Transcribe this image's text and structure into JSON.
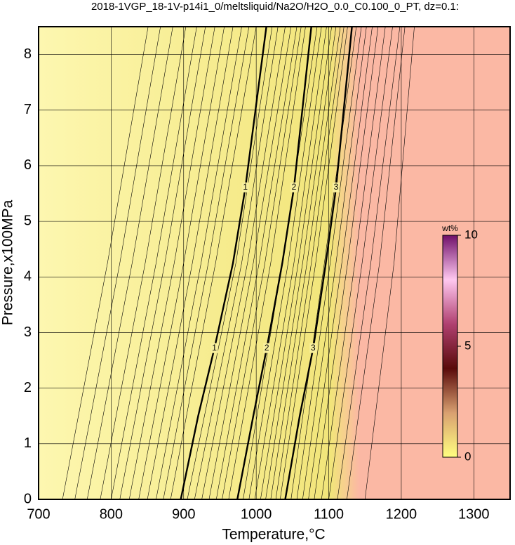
{
  "chart_data": {
    "type": "contour",
    "title": "2018-1VGP_18-1V-p14i1_0/meltsliquid/Na2O/H2O_0.0_C0.100_0_PT, dz=0.1:",
    "x_label": "Temperature,°C",
    "y_label": "Pressure,x100MPa",
    "xlim": [
      700,
      1350
    ],
    "ylim": [
      0,
      8.5
    ],
    "xticks": [
      700,
      800,
      900,
      1000,
      1100,
      1200,
      1300
    ],
    "yticks": [
      0,
      1,
      2,
      3,
      4,
      5,
      6,
      7,
      8
    ],
    "grid": true,
    "background_colors": [
      "#fdf7b0",
      "#f2e57a",
      "#fbb8a4"
    ],
    "contours": [
      {
        "x": [
          733,
          795,
          851
        ],
        "y": [
          0,
          4.25,
          8.5
        ]
      },
      {
        "x": [
          750,
          812,
          868
        ],
        "y": [
          0,
          4.25,
          8.5
        ]
      },
      {
        "x": [
          767,
          829,
          885
        ],
        "y": [
          0,
          4.25,
          8.5
        ]
      },
      {
        "x": [
          785,
          847,
          903
        ],
        "y": [
          0,
          4.25,
          8.5
        ]
      },
      {
        "x": [
          800,
          862,
          918
        ],
        "y": [
          0,
          4.25,
          8.5
        ]
      },
      {
        "x": [
          812,
          874,
          930
        ],
        "y": [
          0,
          4.25,
          8.5
        ]
      },
      {
        "x": [
          825,
          887,
          943
        ],
        "y": [
          0,
          4.25,
          8.5
        ]
      },
      {
        "x": [
          838,
          900,
          956
        ],
        "y": [
          0,
          4.25,
          8.5
        ]
      },
      {
        "x": [
          850,
          912,
          968
        ],
        "y": [
          0,
          4.25,
          8.5
        ]
      },
      {
        "x": [
          862,
          924,
          980
        ],
        "y": [
          0,
          4.25,
          8.5
        ]
      },
      {
        "x": [
          872,
          934,
          990
        ],
        "y": [
          0,
          4.25,
          8.5
        ]
      },
      {
        "x": [
          882,
          944,
          1000
        ],
        "y": [
          0,
          4.25,
          8.5
        ]
      },
      {
        "x": [
          905,
          972,
          1022
        ],
        "y": [
          0,
          4.25,
          8.5
        ]
      },
      {
        "x": [
          915,
          980,
          1030
        ],
        "y": [
          0,
          4.25,
          8.5
        ]
      },
      {
        "x": [
          925,
          988,
          1040
        ],
        "y": [
          0,
          4.25,
          8.5
        ]
      },
      {
        "x": [
          935,
          996,
          1048
        ],
        "y": [
          0,
          4.25,
          8.5
        ]
      },
      {
        "x": [
          945,
          1004,
          1056
        ],
        "y": [
          0,
          4.25,
          8.5
        ]
      },
      {
        "x": [
          953,
          1012,
          1062
        ],
        "y": [
          0,
          4.25,
          8.5
        ]
      },
      {
        "x": [
          962,
          1020,
          1068
        ],
        "y": [
          0,
          4.25,
          8.5
        ]
      },
      {
        "x": [
          982,
          1036,
          1084
        ],
        "y": [
          0,
          4.25,
          8.5
        ]
      },
      {
        "x": [
          990,
          1044,
          1090
        ],
        "y": [
          0,
          4.25,
          8.5
        ]
      },
      {
        "x": [
          998,
          1052,
          1097
        ],
        "y": [
          0,
          4.25,
          8.5
        ]
      },
      {
        "x": [
          1006,
          1058,
          1104
        ],
        "y": [
          0,
          4.25,
          8.5
        ]
      },
      {
        "x": [
          1013,
          1064,
          1110
        ],
        "y": [
          0,
          4.25,
          8.5
        ]
      },
      {
        "x": [
          1020,
          1070,
          1116
        ],
        "y": [
          0,
          4.25,
          8.5
        ]
      },
      {
        "x": [
          1027,
          1076,
          1121
        ],
        "y": [
          0,
          4.25,
          8.5
        ]
      },
      {
        "x": [
          1033,
          1082,
          1126
        ],
        "y": [
          0,
          4.25,
          8.5
        ]
      },
      {
        "x": [
          1048,
          1094,
          1138
        ],
        "y": [
          0,
          4.25,
          8.5
        ]
      },
      {
        "x": [
          1056,
          1102,
          1145
        ],
        "y": [
          0,
          4.25,
          8.5
        ]
      },
      {
        "x": [
          1064,
          1110,
          1152
        ],
        "y": [
          0,
          4.25,
          8.5
        ]
      },
      {
        "x": [
          1072,
          1118,
          1160
        ],
        "y": [
          0,
          4.25,
          8.5
        ]
      },
      {
        "x": [
          1080,
          1126,
          1168
        ],
        "y": [
          0,
          4.25,
          8.5
        ]
      },
      {
        "x": [
          1090,
          1136,
          1178
        ],
        "y": [
          0,
          4.25,
          8.5
        ]
      },
      {
        "x": [
          1100,
          1146,
          1188
        ],
        "y": [
          0,
          4.25,
          8.5
        ]
      },
      {
        "x": [
          1112,
          1158,
          1198
        ],
        "y": [
          0,
          4.25,
          8.5
        ]
      },
      {
        "x": [
          1125,
          1170,
          1205
        ],
        "y": [
          0,
          4.25,
          8.5
        ]
      },
      {
        "x": [
          1150,
          1190,
          1218
        ],
        "y": [
          0,
          4.25,
          8.5
        ]
      }
    ],
    "major_contours": [
      {
        "label": "1",
        "x": [
          896,
          920,
          943,
          968,
          985,
          1014
        ],
        "y": [
          0,
          1.5,
          2.75,
          4.25,
          5.6,
          8.5
        ]
      },
      {
        "label": "2",
        "x": [
          974,
          996,
          1015,
          1036,
          1052,
          1076
        ],
        "y": [
          0,
          1.5,
          2.75,
          4.25,
          5.6,
          8.5
        ]
      },
      {
        "label": "3",
        "x": [
          1040,
          1060,
          1079,
          1096,
          1110,
          1132
        ],
        "y": [
          0,
          1.5,
          2.75,
          4.25,
          5.6,
          8.5
        ]
      }
    ],
    "colorbar": {
      "label": "wt%",
      "lim": [
        0,
        10
      ],
      "ticks": [
        0,
        5,
        10
      ],
      "colors": [
        "#ffff80",
        "#d9a070",
        "#5a0a0a",
        "#b04070",
        "#ffc8f0",
        "#70106a"
      ]
    }
  }
}
